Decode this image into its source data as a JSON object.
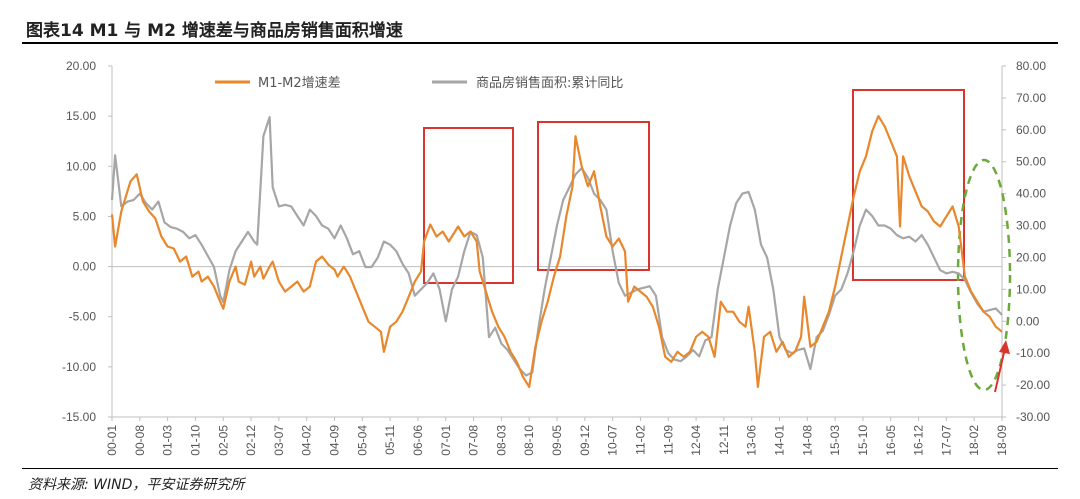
{
  "header": {
    "title": "图表14    M1 与 M2 增速差与商品房销售面积增速"
  },
  "footer": {
    "source": "资料来源: WIND，平安证券研究所"
  },
  "chart_data": {
    "type": "line",
    "x_ticks": [
      "00-01",
      "00-08",
      "01-03",
      "01-10",
      "02-05",
      "02-12",
      "03-07",
      "04-02",
      "04-09",
      "05-04",
      "05-11",
      "06-06",
      "07-01",
      "07-08",
      "08-03",
      "08-10",
      "09-05",
      "09-12",
      "10-07",
      "11-02",
      "11-09",
      "12-04",
      "12-11",
      "13-06",
      "14-01",
      "14-08",
      "15-03",
      "15-10",
      "16-05",
      "16-12",
      "17-07",
      "18-02",
      "18-09"
    ],
    "left_axis": {
      "ylim": [
        -15,
        20
      ],
      "ticks": [
        "20.00",
        "15.00",
        "10.00",
        "5.00",
        "0.00",
        "-5.00",
        "-10.00",
        "-15.00"
      ]
    },
    "right_axis": {
      "ylim": [
        -30,
        80
      ],
      "ticks": [
        "80.00",
        "70.00",
        "60.00",
        "50.00",
        "40.00",
        "30.00",
        "20.00",
        "10.00",
        "0.00",
        "-10.00",
        "-20.00",
        "-30.00"
      ]
    },
    "legend": {
      "placement": "top"
    },
    "series": [
      {
        "name": "M1-M2增速差",
        "axis": "left",
        "color": "#E8872B",
        "points": [
          [
            0,
            5.2
          ],
          [
            1,
            2.0
          ],
          [
            3,
            5.5
          ],
          [
            6,
            8.5
          ],
          [
            8,
            9.2
          ],
          [
            10,
            6.5
          ],
          [
            12,
            5.5
          ],
          [
            14,
            4.8
          ],
          [
            16,
            3.0
          ],
          [
            18,
            2.0
          ],
          [
            20,
            1.8
          ],
          [
            22,
            0.5
          ],
          [
            24,
            1.0
          ],
          [
            26,
            -1.0
          ],
          [
            28,
            -0.5
          ],
          [
            29,
            -1.5
          ],
          [
            31,
            -1.0
          ],
          [
            33,
            -2.0
          ],
          [
            35,
            -3.5
          ],
          [
            36,
            -4.2
          ],
          [
            38,
            -1.5
          ],
          [
            40,
            0.0
          ],
          [
            41,
            -1.5
          ],
          [
            43,
            -1.8
          ],
          [
            45,
            0.5
          ],
          [
            46,
            -1.0
          ],
          [
            48,
            0.0
          ],
          [
            49,
            -1.2
          ],
          [
            51,
            0.0
          ],
          [
            52,
            0.5
          ],
          [
            54,
            -1.5
          ],
          [
            56,
            -2.5
          ],
          [
            58,
            -2.0
          ],
          [
            60,
            -1.5
          ],
          [
            62,
            -2.5
          ],
          [
            64,
            -2.0
          ],
          [
            66,
            0.5
          ],
          [
            68,
            1.0
          ],
          [
            70,
            0.2
          ],
          [
            72,
            -0.3
          ],
          [
            73,
            -1.0
          ],
          [
            75,
            0.0
          ],
          [
            77,
            -1.0
          ],
          [
            79,
            -2.5
          ],
          [
            81,
            -4.0
          ],
          [
            83,
            -5.5
          ],
          [
            85,
            -6.0
          ],
          [
            87,
            -6.5
          ],
          [
            88,
            -8.5
          ],
          [
            90,
            -6.0
          ],
          [
            92,
            -5.5
          ],
          [
            94,
            -4.5
          ],
          [
            96,
            -3.0
          ],
          [
            98,
            -1.5
          ],
          [
            100,
            -0.5
          ],
          [
            101,
            2.5
          ],
          [
            103,
            4.2
          ],
          [
            105,
            3.0
          ],
          [
            107,
            3.5
          ],
          [
            109,
            2.5
          ],
          [
            111,
            3.5
          ],
          [
            112,
            4.0
          ],
          [
            114,
            3.0
          ],
          [
            116,
            3.5
          ],
          [
            118,
            2.5
          ],
          [
            119,
            -0.5
          ],
          [
            121,
            -2.5
          ],
          [
            123,
            -4.5
          ],
          [
            125,
            -6.0
          ],
          [
            127,
            -7.0
          ],
          [
            129,
            -8.5
          ],
          [
            131,
            -9.5
          ],
          [
            133,
            -11.0
          ],
          [
            135,
            -12.0
          ],
          [
            137,
            -8.0
          ],
          [
            139,
            -5.5
          ],
          [
            141,
            -3.5
          ],
          [
            143,
            -1.0
          ],
          [
            145,
            1.0
          ],
          [
            147,
            5.0
          ],
          [
            149,
            8.0
          ],
          [
            150,
            13.0
          ],
          [
            152,
            10.0
          ],
          [
            154,
            8.0
          ],
          [
            156,
            9.5
          ],
          [
            158,
            6.0
          ],
          [
            160,
            3.0
          ],
          [
            162,
            2.0
          ],
          [
            164,
            2.8
          ],
          [
            166,
            1.5
          ],
          [
            167,
            -3.5
          ],
          [
            169,
            -2.0
          ],
          [
            171,
            -2.5
          ],
          [
            173,
            -3.0
          ],
          [
            175,
            -4.0
          ],
          [
            177,
            -6.0
          ],
          [
            179,
            -9.0
          ],
          [
            181,
            -9.5
          ],
          [
            183,
            -8.5
          ],
          [
            185,
            -9.0
          ],
          [
            187,
            -8.5
          ],
          [
            189,
            -7.0
          ],
          [
            191,
            -6.5
          ],
          [
            193,
            -7.0
          ],
          [
            195,
            -9.0
          ],
          [
            197,
            -3.5
          ],
          [
            199,
            -4.5
          ],
          [
            201,
            -4.5
          ],
          [
            203,
            -5.5
          ],
          [
            205,
            -6.0
          ],
          [
            206,
            -4.0
          ],
          [
            208,
            -8.5
          ],
          [
            209,
            -12.0
          ],
          [
            211,
            -7.0
          ],
          [
            213,
            -6.5
          ],
          [
            215,
            -8.5
          ],
          [
            217,
            -7.5
          ],
          [
            219,
            -9.0
          ],
          [
            221,
            -8.5
          ],
          [
            223,
            -7.0
          ],
          [
            224,
            -3.0
          ],
          [
            226,
            -8.0
          ],
          [
            228,
            -7.5
          ],
          [
            230,
            -6.0
          ],
          [
            232,
            -4.5
          ],
          [
            234,
            -2.0
          ],
          [
            236,
            1.0
          ],
          [
            238,
            4.0
          ],
          [
            240,
            7.0
          ],
          [
            242,
            9.5
          ],
          [
            244,
            11.0
          ],
          [
            246,
            13.5
          ],
          [
            248,
            15.0
          ],
          [
            250,
            14.0
          ],
          [
            252,
            12.5
          ],
          [
            254,
            11.0
          ],
          [
            255,
            4.0
          ],
          [
            256,
            11.0
          ],
          [
            258,
            9.0
          ],
          [
            260,
            7.5
          ],
          [
            262,
            6.0
          ],
          [
            264,
            5.5
          ],
          [
            266,
            4.5
          ],
          [
            268,
            4.0
          ],
          [
            270,
            5.0
          ],
          [
            272,
            6.0
          ],
          [
            274,
            4.0
          ],
          [
            276,
            -1.0
          ],
          [
            278,
            -2.5
          ],
          [
            280,
            -3.5
          ],
          [
            282,
            -4.5
          ],
          [
            284,
            -5.0
          ],
          [
            286,
            -6.0
          ],
          [
            288,
            -6.5
          ]
        ]
      },
      {
        "name": "商品房销售面积:累计同比",
        "axis": "right",
        "color": "#A6A6A6",
        "points": [
          [
            0,
            38.0
          ],
          [
            1,
            52.0
          ],
          [
            3,
            36.0
          ],
          [
            5,
            37.5
          ],
          [
            7,
            38.0
          ],
          [
            9,
            40.0
          ],
          [
            11,
            37.0
          ],
          [
            13,
            35.0
          ],
          [
            15,
            37.5
          ],
          [
            17,
            31.0
          ],
          [
            19,
            29.5
          ],
          [
            21,
            29.0
          ],
          [
            23,
            28.0
          ],
          [
            25,
            26.0
          ],
          [
            27,
            27.0
          ],
          [
            29,
            24.0
          ],
          [
            31,
            20.5
          ],
          [
            33,
            17.0
          ],
          [
            35,
            8.0
          ],
          [
            36,
            6.0
          ],
          [
            38,
            16.0
          ],
          [
            40,
            22.0
          ],
          [
            42,
            25.0
          ],
          [
            44,
            28.0
          ],
          [
            46,
            25.0
          ],
          [
            47,
            24.0
          ],
          [
            49,
            58.0
          ],
          [
            51,
            64.0
          ],
          [
            52,
            42.0
          ],
          [
            54,
            36.0
          ],
          [
            56,
            36.5
          ],
          [
            58,
            36.0
          ],
          [
            60,
            33.0
          ],
          [
            62,
            30.0
          ],
          [
            64,
            35.0
          ],
          [
            66,
            33.0
          ],
          [
            68,
            30.0
          ],
          [
            70,
            29.0
          ],
          [
            72,
            26.0
          ],
          [
            74,
            30.0
          ],
          [
            76,
            26.0
          ],
          [
            78,
            21.0
          ],
          [
            80,
            22.0
          ],
          [
            82,
            17.0
          ],
          [
            84,
            17.0
          ],
          [
            86,
            20.0
          ],
          [
            88,
            25.0
          ],
          [
            90,
            24.0
          ],
          [
            92,
            22.0
          ],
          [
            94,
            18.0
          ],
          [
            96,
            15.0
          ],
          [
            98,
            8.0
          ],
          [
            100,
            10.0
          ],
          [
            102,
            12.0
          ],
          [
            104,
            15.0
          ],
          [
            106,
            10.0
          ],
          [
            108,
            0.0
          ],
          [
            110,
            10.0
          ],
          [
            112,
            14.0
          ],
          [
            114,
            22.0
          ],
          [
            116,
            28.0
          ],
          [
            118,
            27.0
          ],
          [
            120,
            20.0
          ],
          [
            122,
            -5.0
          ],
          [
            124,
            -2.0
          ],
          [
            126,
            -7.0
          ],
          [
            128,
            -9.0
          ],
          [
            130,
            -12.0
          ],
          [
            132,
            -15.0
          ],
          [
            134,
            -17.0
          ],
          [
            136,
            -16.0
          ],
          [
            138,
            -2.0
          ],
          [
            140,
            10.0
          ],
          [
            142,
            20.0
          ],
          [
            144,
            30.0
          ],
          [
            146,
            38.0
          ],
          [
            148,
            42.0
          ],
          [
            150,
            46.0
          ],
          [
            152,
            48.0
          ],
          [
            154,
            45.0
          ],
          [
            156,
            40.0
          ],
          [
            158,
            38.0
          ],
          [
            160,
            35.0
          ],
          [
            162,
            22.0
          ],
          [
            164,
            12.0
          ],
          [
            166,
            8.0
          ],
          [
            168,
            9.0
          ],
          [
            170,
            10.0
          ],
          [
            172,
            10.5
          ],
          [
            174,
            11.0
          ],
          [
            176,
            8.0
          ],
          [
            178,
            -5.0
          ],
          [
            180,
            -10.0
          ],
          [
            182,
            -12.0
          ],
          [
            184,
            -12.5
          ],
          [
            186,
            -11.0
          ],
          [
            188,
            -9.0
          ],
          [
            190,
            -11.0
          ],
          [
            192,
            -6.0
          ],
          [
            194,
            -5.0
          ],
          [
            196,
            10.0
          ],
          [
            198,
            20.0
          ],
          [
            200,
            30.0
          ],
          [
            202,
            37.0
          ],
          [
            204,
            40.0
          ],
          [
            206,
            40.5
          ],
          [
            208,
            35.0
          ],
          [
            210,
            24.0
          ],
          [
            212,
            20.0
          ],
          [
            214,
            10.0
          ],
          [
            216,
            -5.0
          ],
          [
            218,
            -9.0
          ],
          [
            220,
            -10.0
          ],
          [
            222,
            -9.0
          ],
          [
            224,
            -8.5
          ],
          [
            226,
            -15.0
          ],
          [
            228,
            -5.0
          ],
          [
            230,
            -3.0
          ],
          [
            232,
            2.0
          ],
          [
            234,
            8.0
          ],
          [
            236,
            10.0
          ],
          [
            238,
            15.0
          ],
          [
            240,
            22.0
          ],
          [
            242,
            30.0
          ],
          [
            244,
            35.0
          ],
          [
            246,
            33.0
          ],
          [
            248,
            30.0
          ],
          [
            250,
            30.0
          ],
          [
            252,
            29.0
          ],
          [
            254,
            27.0
          ],
          [
            256,
            26.0
          ],
          [
            258,
            26.5
          ],
          [
            260,
            25.0
          ],
          [
            262,
            27.0
          ],
          [
            264,
            24.0
          ],
          [
            266,
            20.0
          ],
          [
            268,
            16.0
          ],
          [
            270,
            15.0
          ],
          [
            272,
            15.5
          ],
          [
            274,
            15.0
          ],
          [
            276,
            13.0
          ],
          [
            278,
            9.0
          ],
          [
            280,
            5.5
          ],
          [
            282,
            3.0
          ],
          [
            284,
            3.5
          ],
          [
            286,
            4.0
          ],
          [
            288,
            2.0
          ]
        ]
      }
    ]
  }
}
